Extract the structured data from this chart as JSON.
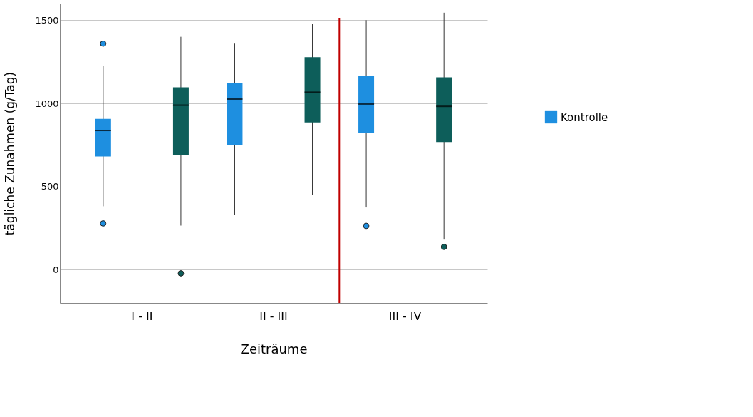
{
  "chart_data": {
    "type": "box",
    "xlabel": "Zeiträume",
    "ylabel": "tägliche Zunahmen (g/Tag)",
    "categories": [
      "I - II",
      "II - III",
      "III - IV"
    ],
    "series": [
      {
        "name": "Kontrolle",
        "color": "#1e8fe0",
        "boxes": [
          {
            "low": 381,
            "q1": 681,
            "median": 837,
            "q3": 907,
            "high": 1226,
            "outliers": [
              1359,
              278
            ]
          },
          {
            "low": 330,
            "q1": 748,
            "median": 1026,
            "q3": 1122,
            "high": 1359
          },
          {
            "low": 374,
            "q1": 822,
            "median": 996,
            "q3": 1167,
            "high": 1500,
            "outliers": [
              263
            ]
          }
        ]
      },
      {
        "color": "#0d5e5a",
        "boxes": [
          {
            "low": 265,
            "q1": 689,
            "median": 989,
            "q3": 1096,
            "high": 1400,
            "outliers": [
              -22
            ]
          },
          {
            "low": 448,
            "q1": 885,
            "median": 1067,
            "q3": 1278,
            "high": 1478
          },
          {
            "low": 185,
            "q1": 767,
            "median": 982,
            "q3": 1156,
            "high": 1545,
            "outliers": [
              137
            ]
          }
        ]
      }
    ],
    "ylim": [
      -200,
      1600
    ],
    "yticks": [
      0,
      500,
      1000,
      1500
    ],
    "grid": "y",
    "legend": "right",
    "ref_lines": [
      {
        "axis": "x",
        "value": "III - IV",
        "color": "#c00000"
      }
    ]
  }
}
